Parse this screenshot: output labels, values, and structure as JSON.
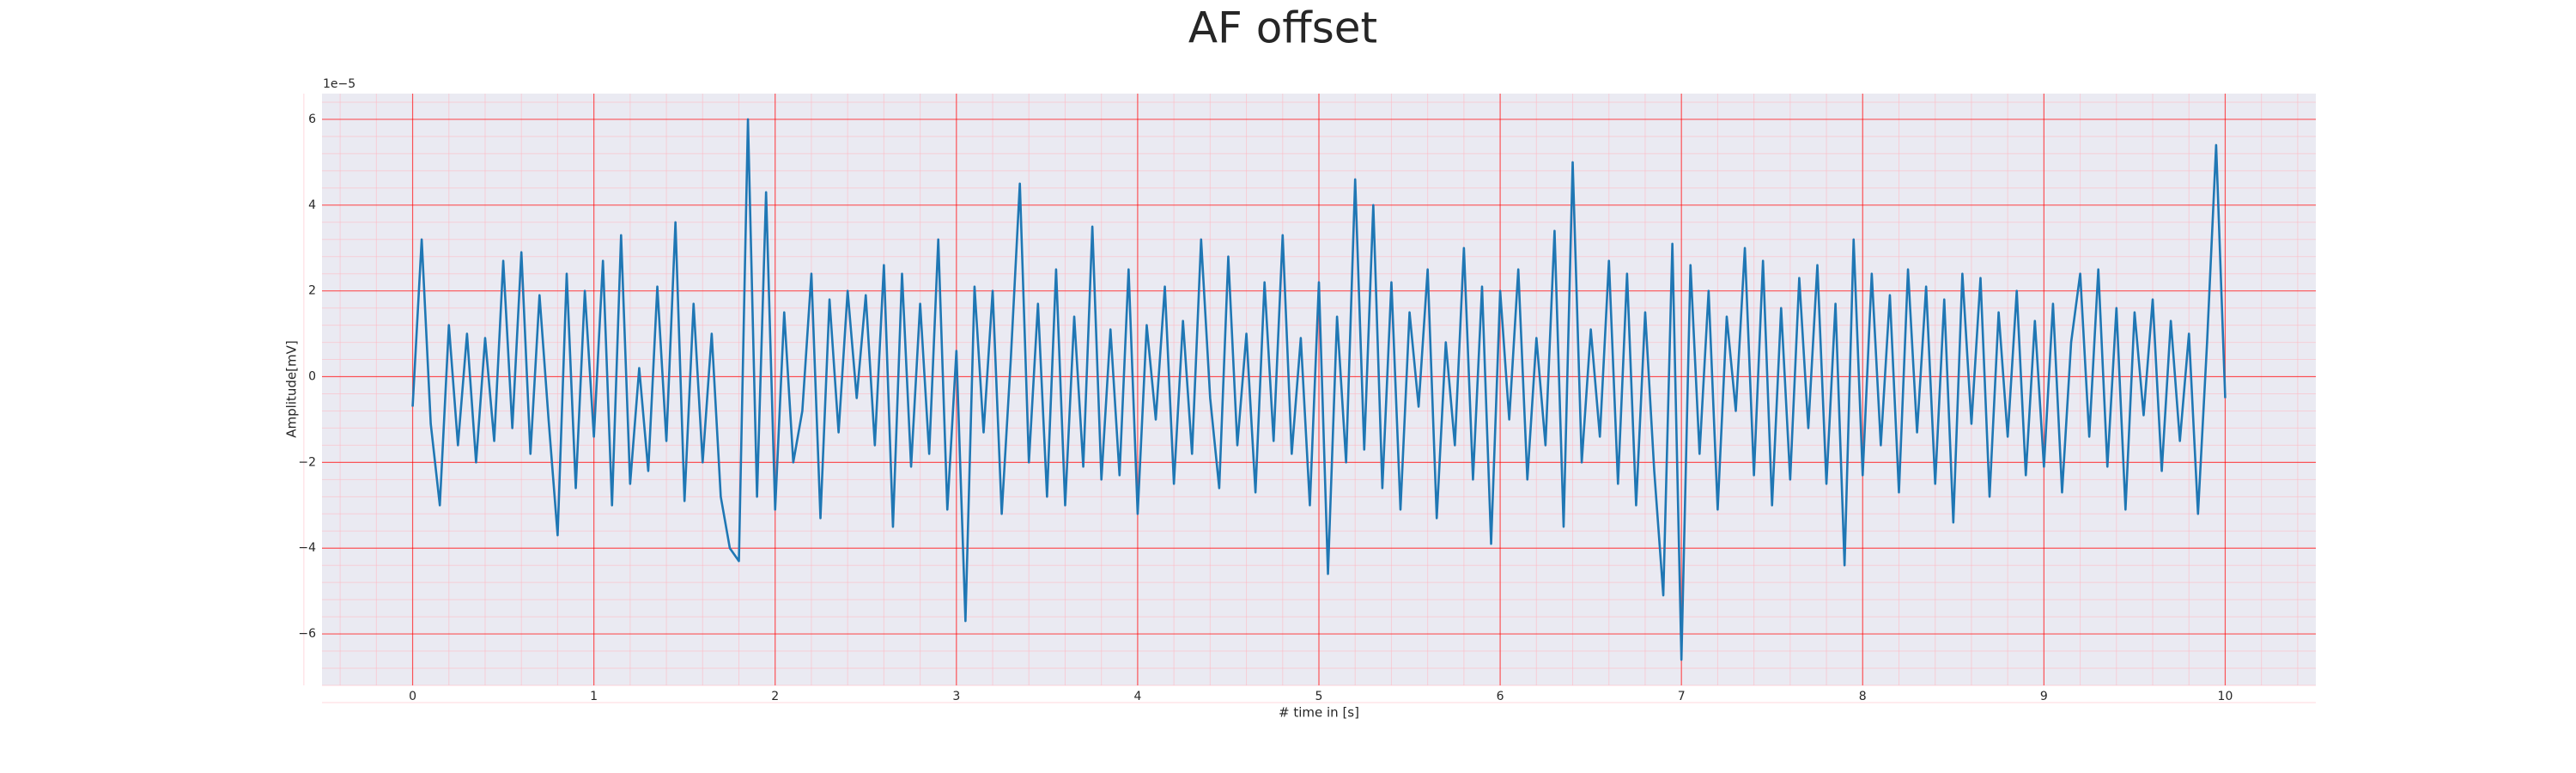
{
  "chart_data": {
    "type": "line",
    "title": "AF offset",
    "xlabel": "# time in [s]",
    "ylabel": "Amplitude[mV]",
    "offset_text": "1e−5",
    "color": "#1f77b4",
    "grid": true,
    "minor_grid": true,
    "xlim": [
      -0.5,
      10.5
    ],
    "ylim": [
      -7.2,
      6.6
    ],
    "xticks": [
      0,
      1,
      2,
      3,
      4,
      5,
      6,
      7,
      8,
      9,
      10
    ],
    "yticks": [
      {
        "value": -6,
        "label": "−6"
      },
      {
        "value": -4,
        "label": "−4"
      },
      {
        "value": -2,
        "label": "−2"
      },
      0,
      2,
      4,
      6
    ],
    "x": [
      0,
      0.05,
      0.1,
      0.15,
      0.2,
      0.25,
      0.3,
      0.35,
      0.4,
      0.45,
      0.5,
      0.55,
      0.6,
      0.65,
      0.7,
      0.75,
      0.8,
      0.85,
      0.9,
      0.95,
      1,
      1.05,
      1.1,
      1.15,
      1.2,
      1.25,
      1.3,
      1.35,
      1.4,
      1.45,
      1.5,
      1.55,
      1.6,
      1.65,
      1.7,
      1.75,
      1.8,
      1.85,
      1.9,
      1.95,
      2,
      2.05,
      2.1,
      2.15,
      2.2,
      2.25,
      2.3,
      2.35,
      2.4,
      2.45,
      2.5,
      2.55,
      2.6,
      2.65,
      2.7,
      2.75,
      2.8,
      2.85,
      2.9,
      2.95,
      3,
      3.05,
      3.1,
      3.15,
      3.2,
      3.25,
      3.3,
      3.35,
      3.4,
      3.45,
      3.5,
      3.55,
      3.6,
      3.65,
      3.7,
      3.75,
      3.8,
      3.85,
      3.9,
      3.95,
      4,
      4.05,
      4.1,
      4.15,
      4.2,
      4.25,
      4.3,
      4.35,
      4.4,
      4.45,
      4.5,
      4.55,
      4.6,
      4.65,
      4.7,
      4.75,
      4.8,
      4.85,
      4.9,
      4.95,
      5,
      5.05,
      5.1,
      5.15,
      5.2,
      5.25,
      5.3,
      5.35,
      5.4,
      5.45,
      5.5,
      5.55,
      5.6,
      5.65,
      5.7,
      5.75,
      5.8,
      5.85,
      5.9,
      5.95,
      6,
      6.05,
      6.1,
      6.15,
      6.2,
      6.25,
      6.3,
      6.35,
      6.4,
      6.45,
      6.5,
      6.55,
      6.6,
      6.65,
      6.7,
      6.75,
      6.8,
      6.85,
      6.9,
      6.95,
      7,
      7.05,
      7.1,
      7.15,
      7.2,
      7.25,
      7.3,
      7.35,
      7.4,
      7.45,
      7.5,
      7.55,
      7.6,
      7.65,
      7.7,
      7.75,
      7.8,
      7.85,
      7.9,
      7.95,
      8,
      8.05,
      8.1,
      8.15,
      8.2,
      8.25,
      8.3,
      8.35,
      8.4,
      8.45,
      8.5,
      8.55,
      8.6,
      8.65,
      8.7,
      8.75,
      8.8,
      8.85,
      8.9,
      8.95,
      9,
      9.05,
      9.1,
      9.15,
      9.2,
      9.25,
      9.3,
      9.35,
      9.4,
      9.45,
      9.5,
      9.55,
      9.6,
      9.65,
      9.7,
      9.75,
      9.8,
      9.85,
      9.9,
      9.95,
      10
    ],
    "values": [
      -0.7,
      3.2,
      -1.1,
      -3.0,
      1.2,
      -1.6,
      1.0,
      -2.0,
      0.9,
      -1.5,
      2.7,
      -1.2,
      2.9,
      -1.8,
      1.9,
      -1.0,
      -3.7,
      2.4,
      -2.6,
      2.0,
      -1.4,
      2.7,
      -3.0,
      3.3,
      -2.5,
      0.2,
      -2.2,
      2.1,
      -1.5,
      3.6,
      -2.9,
      1.7,
      -2.0,
      1.0,
      -2.8,
      -4.0,
      -4.3,
      6.0,
      -2.8,
      4.3,
      -3.1,
      1.5,
      -2.0,
      -0.8,
      2.4,
      -3.3,
      1.8,
      -1.3,
      2.0,
      -0.5,
      1.9,
      -1.6,
      2.6,
      -3.5,
      2.4,
      -2.1,
      1.7,
      -1.8,
      3.2,
      -3.1,
      0.6,
      -5.7,
      2.1,
      -1.3,
      2.0,
      -3.2,
      0.4,
      4.5,
      -2.0,
      1.7,
      -2.8,
      2.5,
      -3.0,
      1.4,
      -2.1,
      3.5,
      -2.4,
      1.1,
      -2.3,
      2.5,
      -3.2,
      1.2,
      -1.0,
      2.1,
      -2.5,
      1.3,
      -1.8,
      3.2,
      -0.5,
      -2.6,
      2.8,
      -1.6,
      1.0,
      -2.7,
      2.2,
      -1.5,
      3.3,
      -1.8,
      0.9,
      -3.0,
      2.2,
      -4.6,
      1.4,
      -2.0,
      4.6,
      -1.7,
      4.0,
      -2.6,
      2.2,
      -3.1,
      1.5,
      -0.7,
      2.5,
      -3.3,
      0.8,
      -1.6,
      3.0,
      -2.4,
      2.1,
      -3.9,
      2.0,
      -1.0,
      2.5,
      -2.4,
      0.9,
      -1.6,
      3.4,
      -3.5,
      5.0,
      -2.0,
      1.1,
      -1.4,
      2.7,
      -2.5,
      2.4,
      -3.0,
      1.5,
      -2.2,
      -5.1,
      3.1,
      -6.6,
      2.6,
      -1.8,
      2.0,
      -3.1,
      1.4,
      -0.8,
      3.0,
      -2.3,
      2.7,
      -3.0,
      1.6,
      -2.4,
      2.3,
      -1.2,
      2.6,
      -2.5,
      1.7,
      -4.4,
      3.2,
      -2.3,
      2.4,
      -1.6,
      1.9,
      -2.7,
      2.5,
      -1.3,
      2.1,
      -2.5,
      1.8,
      -3.4,
      2.4,
      -1.1,
      2.3,
      -2.8,
      1.5,
      -1.4,
      2.0,
      -2.3,
      1.3,
      -2.1,
      1.7,
      -2.7,
      0.8,
      2.4,
      -1.4,
      2.5,
      -2.1,
      1.6,
      -3.1,
      1.5,
      -0.9,
      1.8,
      -2.2,
      1.3,
      -1.5,
      1.0,
      -3.2,
      0.8,
      5.4,
      -0.5
    ]
  }
}
